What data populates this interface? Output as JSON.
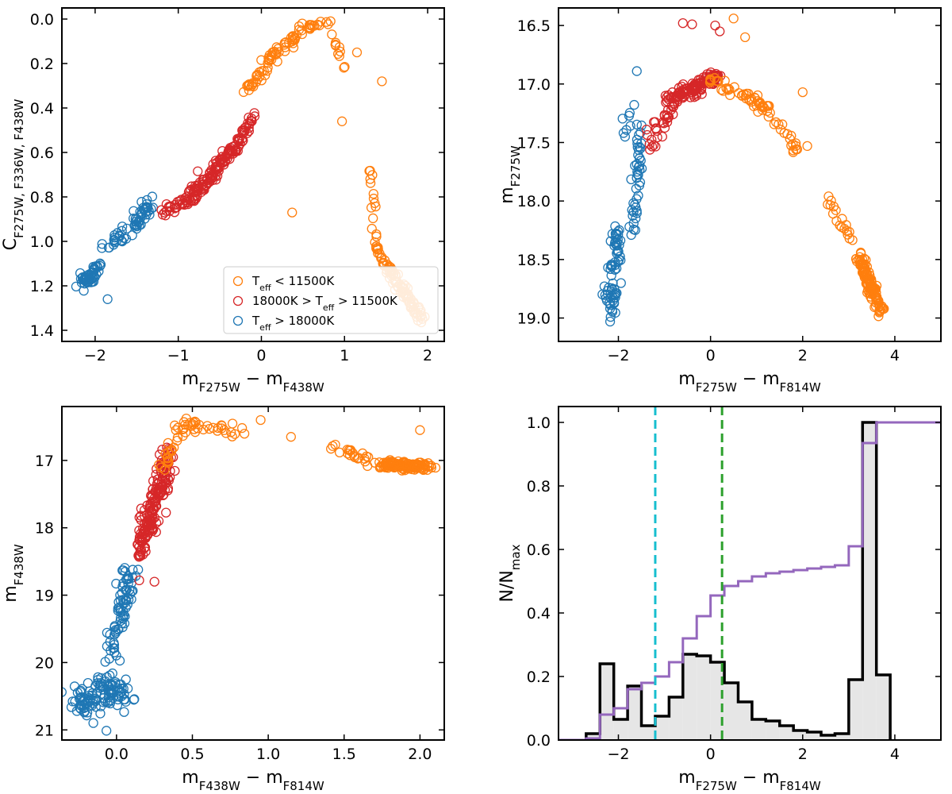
{
  "figure": {
    "title": ""
  },
  "colors": {
    "cool": "#ff7f0e",
    "mid": "#d62728",
    "hot": "#1f77b4",
    "hist_fill": "#e6e6e6",
    "hist_edge": "#000000",
    "cumulative": "#9467bd",
    "cut_blue": "#17becf",
    "cut_green": "#2ca02c"
  },
  "chart_data": [
    {
      "id": "p1",
      "type": "scatter",
      "title": "",
      "xlabel": {
        "main": "m",
        "sub1": "F275W",
        "op": " − ",
        "main2": "m",
        "sub2": "F438W"
      },
      "ylabel": {
        "main": "C",
        "sub": "F275W, F336W, F438W"
      },
      "xlim": [
        -2.4,
        2.2
      ],
      "ylim": [
        1.45,
        -0.05
      ],
      "xticks": [
        -2,
        -1,
        0,
        1,
        2
      ],
      "xtick_labels": [
        "−2",
        "−1",
        "0",
        "1",
        "2"
      ],
      "yticks": [
        0.0,
        0.2,
        0.4,
        0.6,
        0.8,
        1.0,
        1.2,
        1.4
      ],
      "ytick_labels": [
        "0.0",
        "0.2",
        "0.4",
        "0.6",
        "0.8",
        "1.0",
        "1.2",
        "1.4"
      ],
      "legend": {
        "position": "lower-right",
        "entries": [
          {
            "label_pre": "T",
            "label_sub": "eff",
            "label_post": " < 11500K",
            "color_key": "cool"
          },
          {
            "label_pre": "18000K > T",
            "label_sub": "eff",
            "label_post": " > 11500K",
            "color_key": "mid"
          },
          {
            "label_pre": "T",
            "label_sub": "eff",
            "label_post": " > 18000K",
            "color_key": "hot"
          }
        ]
      },
      "series": [
        {
          "name": "Teff > 18000K",
          "color_key": "hot",
          "segments": [
            {
              "x0": -2.15,
              "y0": 1.19,
              "x1": -1.95,
              "y1": 1.12,
              "n": 50,
              "sx": 0.05,
              "sy": 0.03
            },
            {
              "x0": -1.9,
              "y0": 1.02,
              "x1": -1.55,
              "y1": 0.95,
              "n": 22,
              "sx": 0.07,
              "sy": 0.03
            },
            {
              "x0": -1.55,
              "y0": 0.95,
              "x1": -1.35,
              "y1": 0.83,
              "n": 40,
              "sx": 0.05,
              "sy": 0.03
            }
          ]
        },
        {
          "name": "18000K > Teff > 11500K",
          "color_key": "mid",
          "segments": [
            {
              "x0": -1.25,
              "y0": 0.88,
              "x1": -0.9,
              "y1": 0.82,
              "n": 25,
              "sx": 0.05,
              "sy": 0.02
            },
            {
              "x0": -0.9,
              "y0": 0.82,
              "x1": -0.6,
              "y1": 0.7,
              "n": 60,
              "sx": 0.05,
              "sy": 0.025
            },
            {
              "x0": -0.6,
              "y0": 0.7,
              "x1": -0.3,
              "y1": 0.57,
              "n": 60,
              "sx": 0.04,
              "sy": 0.025
            },
            {
              "x0": -0.3,
              "y0": 0.57,
              "x1": -0.1,
              "y1": 0.43,
              "n": 30,
              "sx": 0.03,
              "sy": 0.02
            }
          ]
        },
        {
          "name": "Teff < 11500K",
          "color_key": "cool",
          "segments": [
            {
              "x0": -0.2,
              "y0": 0.33,
              "x1": 0.05,
              "y1": 0.22,
              "n": 25,
              "sx": 0.04,
              "sy": 0.02
            },
            {
              "x0": 0.05,
              "y0": 0.2,
              "x1": 0.5,
              "y1": 0.04,
              "n": 40,
              "sx": 0.05,
              "sy": 0.02
            },
            {
              "x0": 0.5,
              "y0": 0.04,
              "x1": 0.85,
              "y1": 0.01,
              "n": 15,
              "sx": 0.05,
              "sy": 0.01
            },
            {
              "x0": 0.85,
              "y0": 0.05,
              "x1": 1.0,
              "y1": 0.25,
              "n": 10,
              "sx": 0.04,
              "sy": 0.05
            },
            {
              "x0": 1.28,
              "y0": 0.6,
              "x1": 1.4,
              "y1": 1.05,
              "n": 20,
              "sx": 0.02,
              "sy": 0.05
            },
            {
              "x0": 1.4,
              "y0": 1.05,
              "x1": 1.95,
              "y1": 1.36,
              "n": 90,
              "sx": 0.04,
              "sy": 0.025
            }
          ]
        }
      ],
      "extra_points": [
        {
          "x": 0.37,
          "y": 0.87,
          "color_key": "cool"
        },
        {
          "x": 0.97,
          "y": 0.46,
          "color_key": "cool"
        },
        {
          "x": 1.45,
          "y": 0.28,
          "color_key": "cool"
        },
        {
          "x": 1.15,
          "y": 0.15,
          "color_key": "cool"
        },
        {
          "x": -1.85,
          "y": 1.26,
          "color_key": "hot"
        }
      ]
    },
    {
      "id": "p2",
      "type": "scatter",
      "title": "",
      "xlabel": {
        "main": "m",
        "sub1": "F275W",
        "op": " − ",
        "main2": "m",
        "sub2": "F814W"
      },
      "ylabel": {
        "main": "m",
        "sub": "F275W"
      },
      "xlim": [
        -3.3,
        5.0
      ],
      "ylim": [
        19.2,
        16.35
      ],
      "xticks": [
        -2,
        0,
        2,
        4
      ],
      "xtick_labels": [
        "−2",
        "0",
        "2",
        "4"
      ],
      "yticks": [
        16.5,
        17.0,
        17.5,
        18.0,
        18.5,
        19.0
      ],
      "ytick_labels": [
        "16.5",
        "17.0",
        "17.5",
        "18.0",
        "18.5",
        "19.0"
      ],
      "series": [
        {
          "name": "Teff > 18000K",
          "color_key": "hot",
          "segments": [
            {
              "x0": -2.15,
              "y0": 18.95,
              "x1": -2.05,
              "y1": 18.2,
              "n": 70,
              "sx": 0.1,
              "sy": 0.08
            },
            {
              "x0": -1.7,
              "y0": 18.3,
              "x1": -1.5,
              "y1": 17.35,
              "n": 45,
              "sx": 0.08,
              "sy": 0.1
            },
            {
              "x0": -1.9,
              "y0": 17.5,
              "x1": -1.7,
              "y1": 17.1,
              "n": 8,
              "sx": 0.08,
              "sy": 0.05
            }
          ]
        },
        {
          "name": "18000K > Teff > 11500K",
          "color_key": "mid",
          "segments": [
            {
              "x0": -1.35,
              "y0": 17.5,
              "x1": -0.8,
              "y1": 17.2,
              "n": 30,
              "sx": 0.07,
              "sy": 0.08
            },
            {
              "x0": -0.9,
              "y0": 17.15,
              "x1": 0.2,
              "y1": 16.92,
              "n": 120,
              "sx": 0.1,
              "sy": 0.05
            }
          ]
        },
        {
          "name": "Teff < 11500K",
          "color_key": "cool",
          "segments": [
            {
              "x0": 0.0,
              "y0": 16.95,
              "x1": 1.2,
              "y1": 17.2,
              "n": 45,
              "sx": 0.12,
              "sy": 0.04
            },
            {
              "x0": 1.2,
              "y0": 17.2,
              "x1": 1.9,
              "y1": 17.58,
              "n": 22,
              "sx": 0.08,
              "sy": 0.04
            },
            {
              "x0": 2.5,
              "y0": 17.98,
              "x1": 3.1,
              "y1": 18.35,
              "n": 18,
              "sx": 0.06,
              "sy": 0.04
            },
            {
              "x0": 3.2,
              "y0": 18.45,
              "x1": 3.7,
              "y1": 18.95,
              "n": 110,
              "sx": 0.09,
              "sy": 0.04
            }
          ]
        }
      ],
      "extra_points": [
        {
          "x": -0.6,
          "y": 16.48,
          "color_key": "mid"
        },
        {
          "x": -0.4,
          "y": 16.49,
          "color_key": "mid"
        },
        {
          "x": 0.1,
          "y": 16.5,
          "color_key": "mid"
        },
        {
          "x": 0.2,
          "y": 16.55,
          "color_key": "mid"
        },
        {
          "x": 0.5,
          "y": 16.44,
          "color_key": "cool"
        },
        {
          "x": 0.75,
          "y": 16.6,
          "color_key": "cool"
        },
        {
          "x": 2.0,
          "y": 17.07,
          "color_key": "cool"
        },
        {
          "x": 2.1,
          "y": 17.53,
          "color_key": "cool"
        },
        {
          "x": -1.6,
          "y": 16.89,
          "color_key": "hot"
        }
      ]
    },
    {
      "id": "p3",
      "type": "scatter",
      "title": "",
      "xlabel": {
        "main": "m",
        "sub1": "F438W",
        "op": " − ",
        "main2": "m",
        "sub2": "F814W"
      },
      "ylabel": {
        "main": "m",
        "sub": "F438W"
      },
      "xlim": [
        -0.36,
        2.16
      ],
      "ylim": [
        21.15,
        16.2
      ],
      "xticks": [
        0.0,
        0.5,
        1.0,
        1.5,
        2.0
      ],
      "xtick_labels": [
        "0.0",
        "0.5",
        "1.0",
        "1.5",
        "2.0"
      ],
      "yticks": [
        17,
        18,
        19,
        20,
        21
      ],
      "ytick_labels": [
        "17",
        "18",
        "19",
        "20",
        "21"
      ],
      "series": [
        {
          "name": "Teff > 18000K",
          "color_key": "hot",
          "segments": [
            {
              "x0": -0.25,
              "y0": 20.6,
              "x1": 0.05,
              "y1": 20.35,
              "n": 120,
              "sx": 0.08,
              "sy": 0.22
            },
            {
              "x0": -0.05,
              "y0": 19.9,
              "x1": 0.1,
              "y1": 18.6,
              "n": 75,
              "sx": 0.04,
              "sy": 0.15
            }
          ]
        },
        {
          "name": "18000K > Teff > 11500K",
          "color_key": "mid",
          "segments": [
            {
              "x0": 0.15,
              "y0": 18.4,
              "x1": 0.35,
              "y1": 16.9,
              "n": 180,
              "sx": 0.04,
              "sy": 0.15
            }
          ]
        },
        {
          "name": "Teff < 11500K",
          "color_key": "cool",
          "segments": [
            {
              "x0": 0.3,
              "y0": 17.1,
              "x1": 0.45,
              "y1": 16.45,
              "n": 25,
              "sx": 0.03,
              "sy": 0.08
            },
            {
              "x0": 0.45,
              "y0": 16.45,
              "x1": 0.85,
              "y1": 16.6,
              "n": 30,
              "sx": 0.06,
              "sy": 0.06
            },
            {
              "x0": 1.4,
              "y0": 16.75,
              "x1": 1.7,
              "y1": 17.0,
              "n": 20,
              "sx": 0.06,
              "sy": 0.05
            },
            {
              "x0": 1.75,
              "y0": 17.05,
              "x1": 2.05,
              "y1": 17.1,
              "n": 120,
              "sx": 0.07,
              "sy": 0.05
            }
          ]
        }
      ],
      "extra_points": [
        {
          "x": 0.95,
          "y": 16.4,
          "color_key": "cool"
        },
        {
          "x": 1.15,
          "y": 16.65,
          "color_key": "cool"
        },
        {
          "x": 2.0,
          "y": 16.55,
          "color_key": "cool"
        },
        {
          "x": 0.25,
          "y": 18.8,
          "color_key": "mid"
        },
        {
          "x": 0.15,
          "y": 18.78,
          "color_key": "mid"
        }
      ]
    },
    {
      "id": "p4",
      "type": "histogram",
      "title": "",
      "xlabel": {
        "main": "m",
        "sub1": "F275W",
        "op": " − ",
        "main2": "m",
        "sub2": "F814W"
      },
      "ylabel": {
        "main": "N/N",
        "sub": "max"
      },
      "xlim": [
        -3.3,
        5.0
      ],
      "ylim": [
        0.0,
        1.05
      ],
      "xticks": [
        -2,
        0,
        2,
        4
      ],
      "xtick_labels": [
        "−2",
        "0",
        "2",
        "4"
      ],
      "yticks": [
        0.0,
        0.2,
        0.4,
        0.6,
        0.8,
        1.0
      ],
      "ytick_labels": [
        "0.0",
        "0.2",
        "0.4",
        "0.6",
        "0.8",
        "1.0"
      ],
      "bin_edges": [
        -2.7,
        -2.4,
        -2.1,
        -1.8,
        -1.5,
        -1.2,
        -0.9,
        -0.6,
        -0.3,
        0.0,
        0.3,
        0.6,
        0.9,
        1.2,
        1.5,
        1.8,
        2.1,
        2.4,
        2.7,
        3.0,
        3.3,
        3.6,
        3.9
      ],
      "hist_values": [
        0.02,
        0.24,
        0.065,
        0.17,
        0.045,
        0.075,
        0.135,
        0.27,
        0.265,
        0.245,
        0.18,
        0.12,
        0.065,
        0.06,
        0.045,
        0.03,
        0.025,
        0.015,
        0.02,
        0.19,
        1.0,
        0.205
      ],
      "cumulative_values": [
        0.005,
        0.08,
        0.1,
        0.16,
        0.18,
        0.2,
        0.245,
        0.32,
        0.39,
        0.455,
        0.485,
        0.5,
        0.515,
        0.525,
        0.53,
        0.535,
        0.54,
        0.545,
        0.55,
        0.61,
        0.935,
        1.0
      ],
      "cumulative_tail_to": 5.0,
      "vlines": [
        {
          "x": -1.2,
          "color_key": "cut_blue"
        },
        {
          "x": 0.25,
          "color_key": "cut_green"
        }
      ]
    }
  ]
}
